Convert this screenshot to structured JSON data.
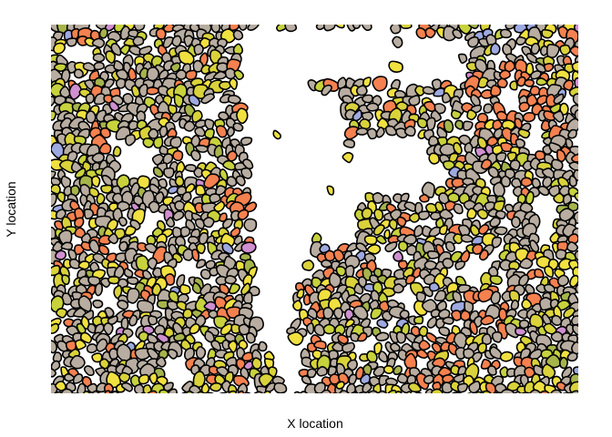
{
  "chart_data": {
    "type": "scatter",
    "title": "",
    "xlabel": "X location",
    "ylabel": "Y location",
    "grid": false,
    "legend": "none",
    "cell_outline_color": "#000000",
    "cell_colors": [
      "#b8ada0",
      "#d9d23a",
      "#f4814f",
      "#f0e040",
      "#c7d23c",
      "#cf8fd0",
      "#9ea9e0",
      "#a6b44a"
    ],
    "empty_regions": [
      "white channel between the left and right tissue halves",
      "white gap at the top right",
      "scattered small white holes"
    ]
  }
}
